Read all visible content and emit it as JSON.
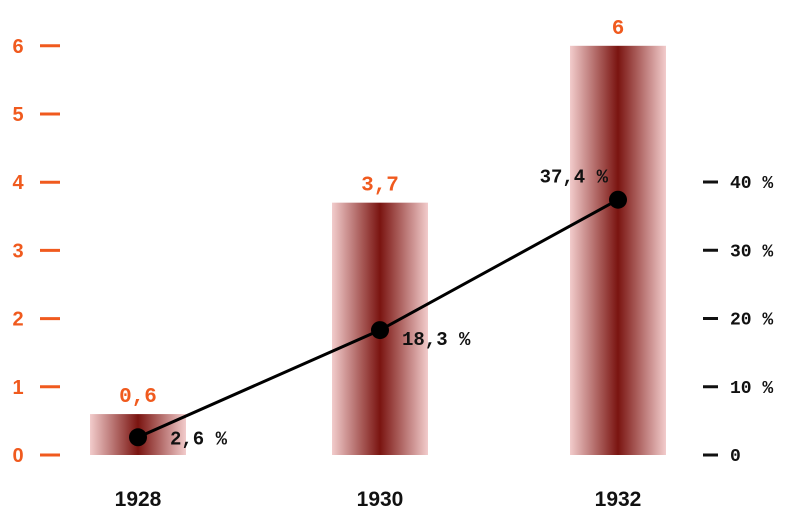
{
  "chart_data": {
    "type": "bar",
    "categories": [
      "1928",
      "1930",
      "1932"
    ],
    "series": [
      {
        "kind": "bar",
        "axis": "left",
        "values": [
          0.6,
          3.7,
          6
        ],
        "labels": [
          "0,6",
          "3,7",
          "6"
        ]
      },
      {
        "kind": "line",
        "axis": "right",
        "values": [
          2.6,
          18.3,
          37.4
        ],
        "labels": [
          "2,6 %",
          "18,3 %",
          "37,4 %"
        ]
      }
    ],
    "left_axis": {
      "ylim": [
        0,
        6
      ],
      "ticks": [
        0,
        1,
        2,
        3,
        4,
        5,
        6
      ],
      "tick_labels": [
        "0",
        "1",
        "2",
        "3",
        "4",
        "5",
        "6"
      ]
    },
    "right_axis": {
      "ylim": [
        0,
        40
      ],
      "ticks": [
        0,
        10,
        20,
        30,
        40
      ],
      "tick_labels": [
        "0",
        "10 %",
        "20 %",
        "30 %",
        "40 %"
      ]
    },
    "grid": false,
    "legend": "none",
    "colors": {
      "left_axis": "#f05a1e",
      "bar_labels": "#f05a1e",
      "bar_center": "#7a1410",
      "bar_edge": "#f2cccc",
      "line": "#000000",
      "marker": "#000000",
      "text": "#111111"
    }
  }
}
